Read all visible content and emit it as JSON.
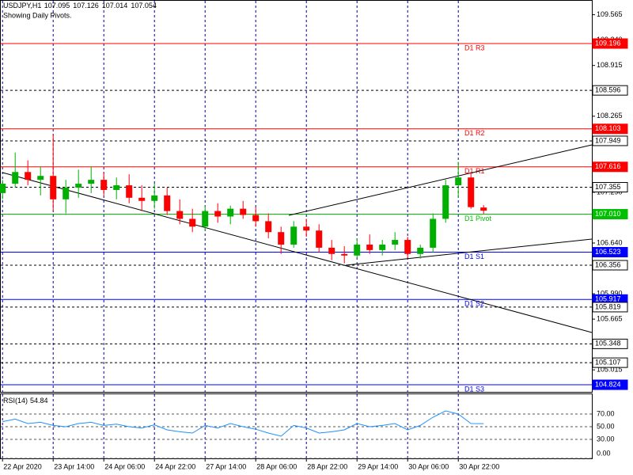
{
  "chart_data": {
    "type": "candlestick",
    "symbol": "USDJPY,H1",
    "subtitle": "Showing Daily Pivots.",
    "open": [
      107.28,
      107.4,
      107.55,
      107.45,
      107.5,
      107.2,
      107.35,
      107.4,
      107.45,
      107.32,
      107.38,
      107.22,
      107.18,
      107.25,
      107.05,
      106.95,
      106.85,
      107.05,
      106.98,
      107.08,
      107.0,
      106.92,
      106.78,
      106.62,
      106.85,
      106.8,
      106.58,
      106.5,
      106.48,
      106.62,
      106.55,
      106.62,
      106.68,
      106.5,
      106.58,
      106.95,
      107.38,
      107.48,
      107.095
    ],
    "high": [
      107.45,
      107.8,
      107.7,
      107.62,
      108.03,
      107.45,
      107.58,
      107.62,
      107.55,
      107.48,
      107.52,
      107.38,
      107.4,
      107.35,
      107.2,
      107.08,
      107.12,
      107.15,
      107.12,
      107.18,
      107.1,
      107.02,
      106.85,
      106.92,
      106.95,
      106.88,
      106.68,
      106.6,
      106.7,
      106.75,
      106.68,
      106.78,
      106.72,
      106.62,
      107.02,
      107.45,
      107.68,
      107.55,
      107.126
    ],
    "low": [
      107.2,
      107.35,
      107.38,
      107.25,
      107.05,
      107.02,
      107.22,
      107.28,
      107.25,
      107.2,
      107.15,
      107.05,
      107.08,
      107.0,
      106.88,
      106.78,
      106.8,
      106.9,
      106.88,
      106.95,
      106.85,
      106.7,
      106.5,
      106.58,
      106.72,
      106.52,
      106.42,
      106.38,
      106.45,
      106.5,
      106.48,
      106.55,
      106.45,
      106.44,
      106.52,
      106.9,
      107.22,
      107.08,
      107.014
    ],
    "close": [
      107.4,
      107.55,
      107.45,
      107.5,
      107.2,
      107.35,
      107.4,
      107.45,
      107.32,
      107.38,
      107.22,
      107.18,
      107.25,
      107.05,
      106.95,
      106.85,
      107.05,
      106.98,
      107.08,
      107.0,
      106.92,
      106.78,
      106.62,
      106.85,
      106.8,
      106.58,
      106.5,
      106.48,
      106.62,
      106.55,
      106.62,
      106.68,
      106.5,
      106.58,
      106.95,
      107.38,
      107.48,
      107.1,
      107.054
    ],
    "up_color": "#00b000",
    "down_color": "#ff0000",
    "xlim": [
      -0.2,
      46.55
    ],
    "xticks": [
      {
        "value": 0,
        "label": "22 Apr 2020"
      },
      {
        "value": 4,
        "label": "23 Apr 14:00"
      },
      {
        "value": 8,
        "label": "24 Apr 06:00"
      },
      {
        "value": 12,
        "label": "24 Apr 22:00"
      },
      {
        "value": 16,
        "label": "27 Apr 14:00"
      },
      {
        "value": 20,
        "label": "28 Apr 06:00"
      },
      {
        "value": 24,
        "label": "28 Apr 22:00"
      },
      {
        "value": 28,
        "label": "29 Apr 14:00"
      },
      {
        "value": 32,
        "label": "30 Apr 06:00"
      },
      {
        "value": 36,
        "label": "30 Apr 22:00"
      }
    ],
    "ylim": [
      104.733,
      109.754
    ],
    "yticks": [
      109.565,
      {
        "value": 109.24,
        "label": "109.240"
      },
      108.915,
      108.265,
      {
        "value": 107.29,
        "label": "107.290"
      },
      {
        "value": 106.64,
        "label": "106.640"
      },
      {
        "value": 105.99,
        "label": "105.990"
      },
      105.665,
      105.015
    ],
    "levels": [
      {
        "name": "D1 R3",
        "value": 109.196,
        "color": "#ff0000"
      },
      {
        "value": 108.596,
        "color": "#000000"
      },
      {
        "name": "D1 R2",
        "value": 108.103,
        "color": "#ff0000"
      },
      {
        "value": 107.949,
        "color": "#000000"
      },
      {
        "name": "D1 R1",
        "value": 107.616,
        "color": "#ff0000"
      },
      {
        "value": 107.355,
        "color": "#000000"
      },
      {
        "name": "D1 Pivot",
        "value": 107.01,
        "value_label": "107.010",
        "color": "#00c000"
      },
      {
        "name": "D1 S1",
        "value": 106.523,
        "color": "#0000ff"
      },
      {
        "value": 106.356,
        "color": "#000000"
      },
      {
        "name": "D1 S2",
        "value": 105.917,
        "color": "#0000ff"
      },
      {
        "value": 105.819,
        "color": "#000000"
      },
      {
        "value": 105.348,
        "color": "#000000"
      },
      {
        "value": 105.107,
        "color": "#000000"
      },
      {
        "name": "D1 S3",
        "value": 104.824,
        "color": "#0000ff"
      }
    ],
    "trendlines": [
      {
        "x": [
          0,
          46.55
        ],
        "y": [
          107.543,
          105.494
        ]
      },
      {
        "x": [
          22.61,
          46.55
        ],
        "y": [
          106.995,
          107.898
        ]
      },
      {
        "x": [
          27.11,
          46.55
        ],
        "y": [
          106.356,
          106.691
        ]
      }
    ],
    "rsi": {
      "title": "RSI(14)",
      "color": "#1e90ff",
      "values": [
        58,
        62,
        55,
        57,
        52,
        50,
        55,
        57,
        52,
        54,
        50,
        48,
        53,
        45,
        42,
        40,
        52,
        48,
        55,
        50,
        46,
        40,
        35,
        52,
        48,
        40,
        42,
        45,
        55,
        50,
        52,
        55,
        45,
        52,
        65,
        75,
        70,
        55,
        54.84
      ],
      "ylim": [
        0,
        102.5
      ],
      "yticks": [
        {
          "value": 70,
          "label": "70.00"
        },
        {
          "value": 50,
          "label": "50.00"
        },
        {
          "value": 30,
          "label": "30.00"
        },
        {
          "value": 0,
          "label": "0.00"
        }
      ]
    }
  }
}
